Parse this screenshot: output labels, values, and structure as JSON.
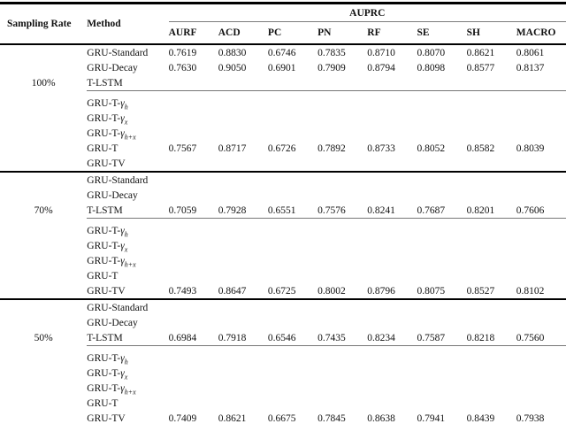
{
  "table": {
    "headers": {
      "sampling_rate": "Sampling Rate",
      "method": "Method",
      "span": "AUPRC",
      "metrics": [
        "AURF",
        "ACD",
        "PC",
        "PN",
        "RF",
        "SE",
        "SH",
        "MACRO"
      ]
    },
    "groups": [
      {
        "sampling_rate": "100%",
        "rows": [
          {
            "method": "GRU-Standard",
            "values": [
              "0.7619",
              "0.8830",
              "0.6746",
              "0.7835",
              "0.8710",
              "0.8070",
              "0.8621",
              "0.8061"
            ]
          },
          {
            "method": "GRU-Decay",
            "values": [
              "0.7630",
              "0.9050",
              "0.6901",
              "0.7909",
              "0.8794",
              "0.8098",
              "0.8577",
              "0.8137"
            ]
          },
          {
            "method": "T-LSTM",
            "values": []
          },
          {
            "method": "GRU-T-",
            "gamma": "γ",
            "sub": "h",
            "values": []
          },
          {
            "method": "GRU-T-",
            "gamma": "γ",
            "sub": "x",
            "values": []
          },
          {
            "method": "GRU-T-",
            "gamma": "γ",
            "sub": "h+x",
            "values": []
          },
          {
            "method": "GRU-T",
            "values": [
              "0.7567",
              "0.8717",
              "0.6726",
              "0.7892",
              "0.8733",
              "0.8052",
              "0.8582",
              "0.8039"
            ]
          },
          {
            "method": "GRU-TV",
            "values": []
          }
        ]
      },
      {
        "sampling_rate": "70%",
        "rows": [
          {
            "method": "GRU-Standard",
            "values": []
          },
          {
            "method": "GRU-Decay",
            "values": []
          },
          {
            "method": "T-LSTM",
            "values": [
              "0.7059",
              "0.7928",
              "0.6551",
              "0.7576",
              "0.8241",
              "0.7687",
              "0.8201",
              "0.7606"
            ]
          },
          {
            "method": "GRU-T-",
            "gamma": "γ",
            "sub": "h",
            "values": []
          },
          {
            "method": "GRU-T-",
            "gamma": "γ",
            "sub": "x",
            "values": []
          },
          {
            "method": "GRU-T-",
            "gamma": "γ",
            "sub": "h+x",
            "values": []
          },
          {
            "method": "GRU-T",
            "values": []
          },
          {
            "method": "GRU-TV",
            "values": [
              "0.7493",
              "0.8647",
              "0.6725",
              "0.8002",
              "0.8796",
              "0.8075",
              "0.8527",
              "0.8102"
            ]
          }
        ]
      },
      {
        "sampling_rate": "50%",
        "rows": [
          {
            "method": "GRU-Standard",
            "values": []
          },
          {
            "method": "GRU-Decay",
            "values": []
          },
          {
            "method": "T-LSTM",
            "values": [
              "0.6984",
              "0.7918",
              "0.6546",
              "0.7435",
              "0.8234",
              "0.7587",
              "0.8218",
              "0.7560"
            ]
          },
          {
            "method": "GRU-T-",
            "gamma": "γ",
            "sub": "h",
            "values": []
          },
          {
            "method": "GRU-T-",
            "gamma": "γ",
            "sub": "x",
            "values": []
          },
          {
            "method": "GRU-T-",
            "gamma": "γ",
            "sub": "h+x",
            "values": []
          },
          {
            "method": "GRU-T",
            "values": []
          },
          {
            "method": "GRU-TV",
            "values": [
              "0.7409",
              "0.8621",
              "0.6675",
              "0.7845",
              "0.8638",
              "0.7941",
              "0.8439",
              "0.7938"
            ]
          }
        ]
      }
    ],
    "colors": {
      "heavy_rule": "#000000",
      "light_rule": "#777777",
      "text": "#111111",
      "background": "#ffffff"
    }
  }
}
